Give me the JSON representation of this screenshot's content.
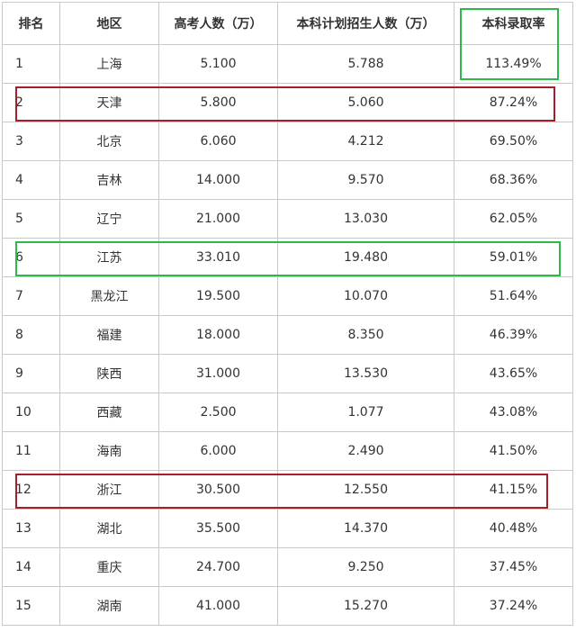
{
  "table": {
    "headers": [
      "排名",
      "地区",
      "高考人数（万）",
      "本科计划招生人数（万）",
      "本科录取率"
    ],
    "rows": [
      [
        "1",
        "上海",
        "5.100",
        "5.788",
        "113.49%"
      ],
      [
        "2",
        "天津",
        "5.800",
        "5.060",
        "87.24%"
      ],
      [
        "3",
        "北京",
        "6.060",
        "4.212",
        "69.50%"
      ],
      [
        "4",
        "吉林",
        "14.000",
        "9.570",
        "68.36%"
      ],
      [
        "5",
        "辽宁",
        "21.000",
        "13.030",
        "62.05%"
      ],
      [
        "6",
        "江苏",
        "33.010",
        "19.480",
        "59.01%"
      ],
      [
        "7",
        "黑龙江",
        "19.500",
        "10.070",
        "51.64%"
      ],
      [
        "8",
        "福建",
        "18.000",
        "8.350",
        "46.39%"
      ],
      [
        "9",
        "陕西",
        "31.000",
        "13.530",
        "43.65%"
      ],
      [
        "10",
        "西藏",
        "2.500",
        "1.077",
        "43.08%"
      ],
      [
        "11",
        "海南",
        "6.000",
        "2.490",
        "41.50%"
      ],
      [
        "12",
        "浙江",
        "30.500",
        "12.550",
        "41.15%"
      ],
      [
        "13",
        "湖北",
        "35.500",
        "14.370",
        "40.48%"
      ],
      [
        "14",
        "重庆",
        "24.700",
        "9.250",
        "37.45%"
      ],
      [
        "15",
        "湖南",
        "41.000",
        "15.270",
        "37.24%"
      ]
    ]
  },
  "highlight_colors": {
    "green": "#2db84a",
    "red": "#a31f2a"
  }
}
